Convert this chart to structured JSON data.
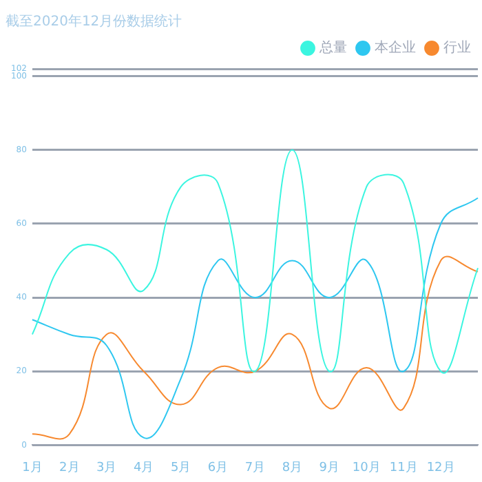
{
  "chart_data": {
    "type": "line",
    "title": "截至2020年12月份数据统计",
    "categories": [
      "1月",
      "2月",
      "3月",
      "4月",
      "5月",
      "6月",
      "7月",
      "8月",
      "9月",
      "10月",
      "11月",
      "12月",
      null
    ],
    "series": [
      {
        "name": "总量",
        "color": "#3bf5e0",
        "values": [
          30,
          52,
          53,
          42,
          70,
          71,
          20,
          80,
          20,
          70,
          71,
          20,
          48
        ]
      },
      {
        "name": "本企业",
        "color": "#2ec7f0",
        "values": [
          34,
          30,
          27,
          2,
          18,
          50,
          40,
          50,
          40,
          50,
          20,
          60,
          67
        ]
      },
      {
        "name": "行业",
        "color": "#f7892f",
        "values": [
          3,
          3,
          30,
          20,
          11,
          21,
          20,
          30,
          10,
          21,
          10,
          50,
          47
        ]
      }
    ],
    "ylim": [
      0,
      102
    ],
    "yticks": [
      0,
      20,
      40,
      60,
      80,
      100,
      102
    ],
    "grid": "y",
    "legend": "top right",
    "marker": "none",
    "line_style": "solid"
  }
}
